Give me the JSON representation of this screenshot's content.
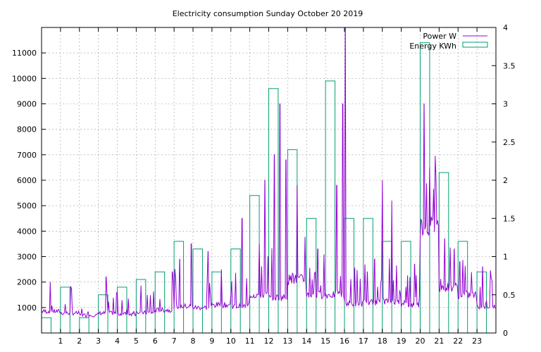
{
  "chart_data": {
    "type": "bar",
    "title": "Electricity consumption Sunday October 20 2019",
    "xlabel": "",
    "ylabel": "",
    "y2label": "",
    "xlim": [
      0,
      24
    ],
    "ylim": [
      0,
      12000
    ],
    "y2lim": [
      0,
      4
    ],
    "grid": true,
    "legend_position": "top-right",
    "x_ticks": [
      "1",
      "2",
      "3",
      "4",
      "5",
      "6",
      "7",
      "8",
      "9",
      "10",
      "11",
      "12",
      "13",
      "14",
      "15",
      "16",
      "17",
      "18",
      "19",
      "20",
      "21",
      "22",
      "23"
    ],
    "y_ticks": [
      "1000",
      "2000",
      "3000",
      "4000",
      "5000",
      "6000",
      "7000",
      "8000",
      "9000",
      "10000",
      "11000"
    ],
    "y2_ticks": [
      "0",
      "0.5",
      "1",
      "1.5",
      "2",
      "2.5",
      "3",
      "3.5",
      "4"
    ],
    "series": [
      {
        "name": "Energy KWh",
        "kind": "bar",
        "axis": "y2",
        "color": "#009e73",
        "values": [
          0.2,
          0.6,
          0.2,
          0.5,
          0.6,
          0.7,
          0.8,
          1.2,
          1.1,
          0.8,
          1.1,
          1.8,
          3.2,
          2.4,
          1.5,
          3.3,
          1.5,
          1.5,
          1.2,
          1.2,
          3.8,
          2.1,
          1.2,
          0.8
        ]
      },
      {
        "name": "Power W",
        "kind": "line",
        "axis": "y",
        "color": "#9400d3",
        "hourly_base": [
          850,
          780,
          700,
          780,
          750,
          800,
          900,
          1050,
          1000,
          1100,
          1050,
          1500,
          1400,
          2100,
          1500,
          1500,
          1150,
          1200,
          1250,
          1100,
          4200,
          1800,
          1500,
          1050
        ],
        "spikes": [
          {
            "x": 3.4,
            "y": 2200
          },
          {
            "x": 4.0,
            "y": 1600
          },
          {
            "x": 6.9,
            "y": 2400
          },
          {
            "x": 7.3,
            "y": 2900
          },
          {
            "x": 7.9,
            "y": 3500
          },
          {
            "x": 8.8,
            "y": 3200
          },
          {
            "x": 9.5,
            "y": 2500
          },
          {
            "x": 10.6,
            "y": 4500
          },
          {
            "x": 11.8,
            "y": 6000
          },
          {
            "x": 12.3,
            "y": 7000
          },
          {
            "x": 12.6,
            "y": 9000
          },
          {
            "x": 12.9,
            "y": 6800
          },
          {
            "x": 13.5,
            "y": 5800
          },
          {
            "x": 14.6,
            "y": 3300
          },
          {
            "x": 15.6,
            "y": 5800
          },
          {
            "x": 15.9,
            "y": 9000
          },
          {
            "x": 16.05,
            "y": 12000
          },
          {
            "x": 17.2,
            "y": 2400
          },
          {
            "x": 17.6,
            "y": 2900
          },
          {
            "x": 18.0,
            "y": 6000
          },
          {
            "x": 18.5,
            "y": 5200
          },
          {
            "x": 19.7,
            "y": 2700
          },
          {
            "x": 20.2,
            "y": 9000
          },
          {
            "x": 20.5,
            "y": 6500
          },
          {
            "x": 21.3,
            "y": 3700
          },
          {
            "x": 21.8,
            "y": 3300
          },
          {
            "x": 22.1,
            "y": 2800
          },
          {
            "x": 23.3,
            "y": 2600
          }
        ]
      }
    ]
  }
}
